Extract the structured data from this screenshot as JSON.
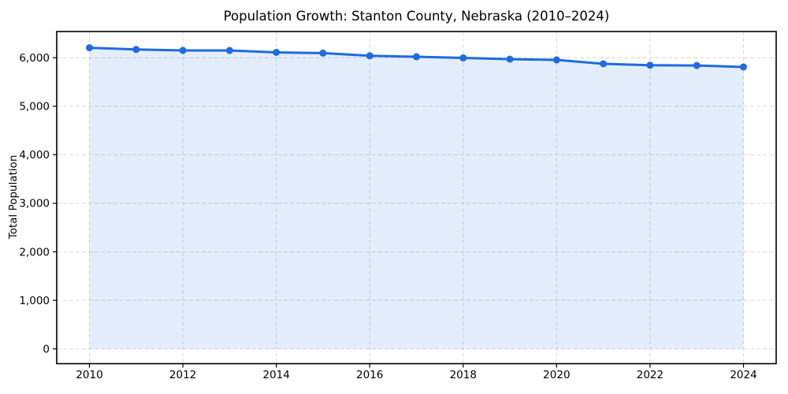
{
  "chart_data": {
    "type": "line",
    "title": "Population Growth: Stanton County, Nebraska (2010–2024)",
    "xlabel": "",
    "ylabel": "Total Population",
    "x": [
      2010,
      2011,
      2012,
      2013,
      2014,
      2015,
      2016,
      2017,
      2018,
      2019,
      2020,
      2021,
      2022,
      2023,
      2024
    ],
    "series": [
      {
        "name": "Total Population",
        "values": [
          6205,
          6170,
          6150,
          6150,
          6110,
          6095,
          6040,
          6020,
          5995,
          5970,
          5955,
          5875,
          5845,
          5840,
          5810
        ]
      }
    ],
    "xticks": [
      2010,
      2012,
      2014,
      2016,
      2018,
      2020,
      2022,
      2024
    ],
    "yticks": [
      0,
      1000,
      2000,
      3000,
      4000,
      5000,
      6000
    ],
    "ytick_labels": [
      "0",
      "1,000",
      "2,000",
      "3,000",
      "4,000",
      "5,000",
      "6,000"
    ],
    "xlim": [
      2009.3,
      2024.7
    ],
    "ylim": [
      -305,
      6540
    ],
    "grid": true,
    "grid_style": "dashed",
    "legend": false,
    "area_fill": true,
    "marker": "circle",
    "colors": {
      "line": "#1f6be0",
      "marker": "#1f6be0",
      "fill": "#1f6be0",
      "grid": "#d5d9e0",
      "spine": "#000000",
      "text": "#000000",
      "background": "#ffffff"
    },
    "fill_opacity": 0.12
  }
}
